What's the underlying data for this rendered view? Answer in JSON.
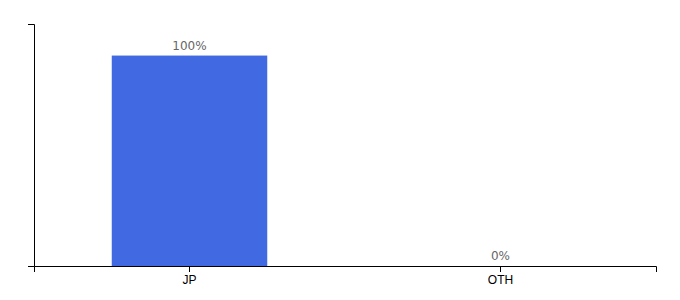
{
  "chart_data": {
    "type": "bar",
    "categories": [
      "JP",
      "OTH"
    ],
    "values": [
      100,
      0
    ],
    "value_labels": [
      "100%",
      "0%"
    ],
    "color": "#4169e1",
    "ylim": [
      0,
      115
    ],
    "data_labels": true,
    "tick_labels": "x",
    "grid": false
  }
}
